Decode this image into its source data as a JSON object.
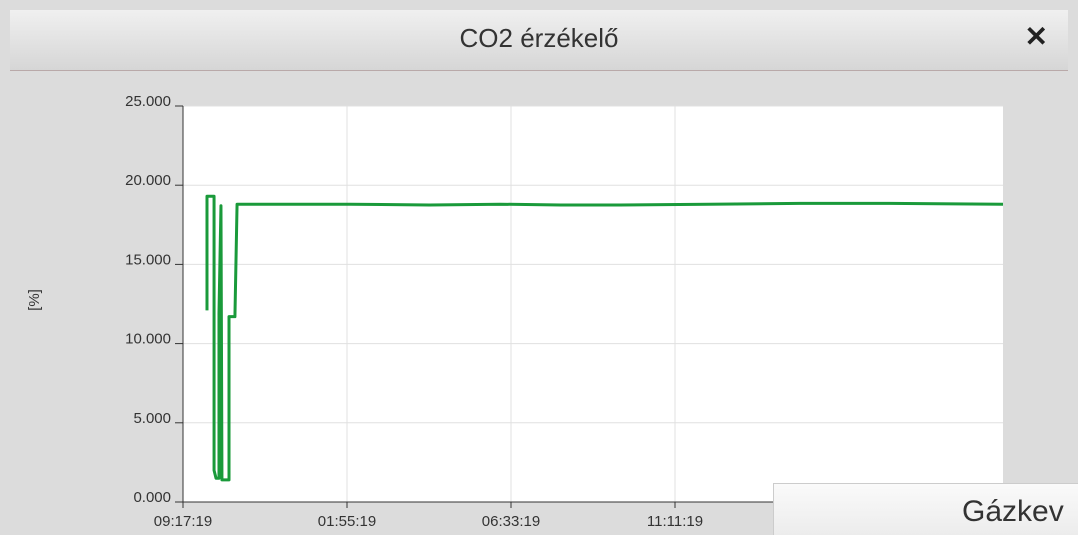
{
  "dialog": {
    "title": "CO2 érzékelő",
    "close": "✕"
  },
  "chart_data": {
    "type": "line",
    "ylabel": "[%]",
    "x": [
      146,
      146,
      189,
      189,
      201,
      219,
      219,
      231,
      237,
      237,
      280,
      280,
      316,
      329,
      600,
      1016,
      1500,
      1929,
      2300,
      2659,
      3200,
      3755,
      4300,
      4990
    ],
    "series": [
      {
        "name": "CO2",
        "color": "#1a9a3a",
        "values": [
          12.1,
          19.3,
          19.3,
          2.0,
          1.5,
          1.5,
          11.9,
          18.7,
          1.5,
          1.4,
          1.4,
          11.7,
          11.7,
          18.8,
          18.8,
          18.8,
          18.75,
          18.8,
          18.75,
          18.75,
          18.8,
          18.85,
          18.85,
          18.8
        ]
      }
    ],
    "xlim": [
      0,
      4990
    ],
    "xticks": [
      {
        "value": 0,
        "label": "09:17:19"
      },
      {
        "value": 998,
        "label": "01:55:19"
      },
      {
        "value": 1996,
        "label": "06:33:19"
      },
      {
        "value": 2994,
        "label": "11:11:19"
      }
    ],
    "ylim": [
      0,
      25
    ],
    "yticks": [
      {
        "value": 0,
        "label": "0.000"
      },
      {
        "value": 5,
        "label": "5.000"
      },
      {
        "value": 10,
        "label": "10.000"
      },
      {
        "value": 15,
        "label": "15.000"
      },
      {
        "value": 20,
        "label": "20.000"
      },
      {
        "value": 25,
        "label": "25.000"
      }
    ],
    "grid": true
  },
  "overlay": {
    "title": "Gázkev"
  }
}
